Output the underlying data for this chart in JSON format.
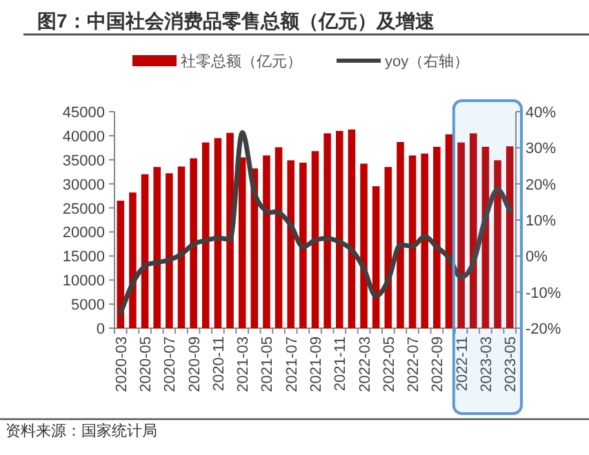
{
  "chart_data": {
    "type": "bar",
    "title": "图7：中国社会消费品零售总额（亿元）及增速",
    "categories": [
      "2020-03",
      null,
      "2020-05",
      null,
      "2020-07",
      null,
      "2020-09",
      null,
      "2020-11",
      null,
      "2021-03",
      null,
      "2021-05",
      null,
      "2021-07",
      null,
      "2021-09",
      null,
      "2021-11",
      null,
      "2022-03",
      null,
      "2022-05",
      null,
      "2022-07",
      null,
      "2022-09",
      null,
      "2022-11",
      null,
      "2023-03",
      null,
      "2023-05"
    ],
    "series": [
      {
        "name": "社零总额（亿元）",
        "color": "#c00000",
        "values": [
          26500,
          28200,
          32000,
          33500,
          32200,
          33600,
          35300,
          38600,
          39500,
          40600,
          35500,
          33200,
          35900,
          37600,
          34900,
          34400,
          36800,
          40500,
          41000,
          41300,
          34200,
          29500,
          33500,
          38700,
          35900,
          36300,
          37700,
          40300,
          38600,
          40500,
          37700,
          34900,
          37800
        ]
      },
      {
        "name": "yoy（右轴）",
        "type": "line",
        "axis": "y2",
        "color": "#404040",
        "values": [
          -15.8,
          -7.5,
          -2.8,
          -1.8,
          -1.1,
          0.5,
          3.3,
          4.3,
          5.0,
          4.6,
          34.2,
          17.7,
          12.4,
          12.1,
          8.5,
          2.5,
          4.4,
          4.9,
          3.9,
          1.7,
          -3.5,
          -11.1,
          -6.7,
          3.1,
          2.7,
          5.4,
          2.5,
          -0.5,
          -5.9,
          -1.8,
          10.6,
          18.4,
          12.7
        ]
      }
    ],
    "ylim": [
      0,
      45000
    ],
    "yticks": [
      0,
      5000,
      10000,
      15000,
      20000,
      25000,
      30000,
      35000,
      40000,
      45000
    ],
    "y2lim": [
      -20,
      40
    ],
    "y2ticks": [
      {
        "value": -20,
        "label": "-20%"
      },
      {
        "value": -10,
        "label": "-10%"
      },
      {
        "value": 0,
        "label": "0%"
      },
      {
        "value": 10,
        "label": "10%"
      },
      {
        "value": 20,
        "label": "20%"
      },
      {
        "value": 30,
        "label": "30%"
      },
      {
        "value": 40,
        "label": "40%"
      }
    ],
    "bands": [
      {
        "axis": "x",
        "from": "2022-11",
        "to": "2023-05",
        "color": "#5b9bd5"
      }
    ],
    "legend": "top",
    "grid": false,
    "marker": "none",
    "annotations": [
      "资料来源：国家统计局"
    ]
  }
}
